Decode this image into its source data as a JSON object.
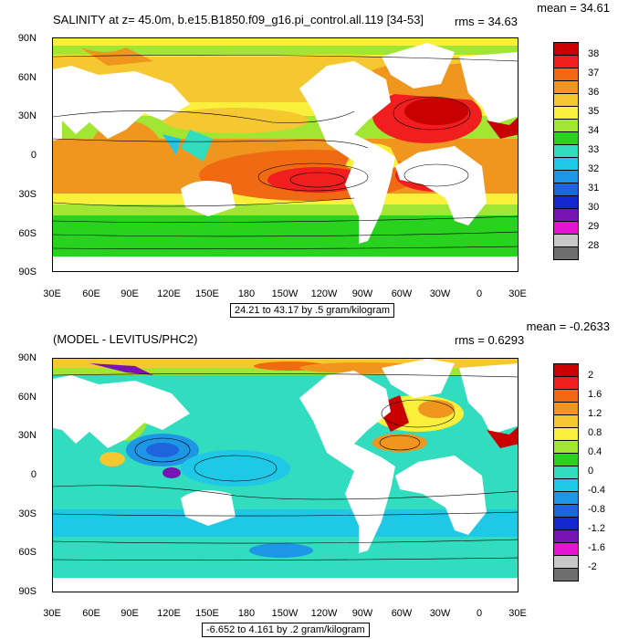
{
  "panel1": {
    "title": "SALINITY at z=  45.0m, b.e15.B1850.f09_g16.pi_control.all.119 [34-53]",
    "mean": "mean = 34.61",
    "rms": "rms = 34.63",
    "caption": "24.21 to 43.17 by .5 gram/kilogram",
    "lat_labels": [
      "90N",
      "60N",
      "30N",
      "0",
      "30S",
      "60S",
      "90S"
    ],
    "lon_labels": [
      "30E",
      "60E",
      "90E",
      "120E",
      "150E",
      "180",
      "150W",
      "120W",
      "90W",
      "60W",
      "30W",
      "0",
      "30E"
    ],
    "colorbar_labels": [
      "38",
      "37",
      "36",
      "35",
      "34",
      "33",
      "32",
      "31",
      "30",
      "29",
      "28"
    ],
    "colorbar_colors": [
      "#c80000",
      "#f01e1e",
      "#f06a14",
      "#f0961e",
      "#f5c832",
      "#faf03c",
      "#a0e632",
      "#28d21e",
      "#32dcbe",
      "#1ec8e6",
      "#1e96e6",
      "#1e64dc",
      "#1428d2",
      "#7814b4",
      "#e614d2",
      "#c8c8c8",
      "#6e6e6e"
    ]
  },
  "panel2": {
    "title": "(MODEL - LEVITUS/PHC2)",
    "mean": "mean = -0.2633",
    "rms": "rms = 0.6293",
    "caption": "-6.652 to 4.161 by .2 gram/kilogram",
    "lat_labels": [
      "90N",
      "60N",
      "30N",
      "0",
      "30S",
      "60S",
      "90S"
    ],
    "lon_labels": [
      "30E",
      "60E",
      "90E",
      "120E",
      "150E",
      "180",
      "150W",
      "120W",
      "90W",
      "60W",
      "30W",
      "0",
      "30E"
    ],
    "colorbar_labels": [
      "2",
      "1.6",
      "1.2",
      "0.8",
      "0.4",
      "0",
      "-0.4",
      "-0.8",
      "-1.2",
      "-1.6",
      "-2"
    ],
    "colorbar_colors": [
      "#c80000",
      "#f01e1e",
      "#f06a14",
      "#f0961e",
      "#f5c832",
      "#faf03c",
      "#a0e632",
      "#28d21e",
      "#32dcbe",
      "#1ec8e6",
      "#1e96e6",
      "#1e64dc",
      "#1428d2",
      "#7814b4",
      "#e614d2",
      "#c8c8c8",
      "#6e6e6e"
    ]
  }
}
